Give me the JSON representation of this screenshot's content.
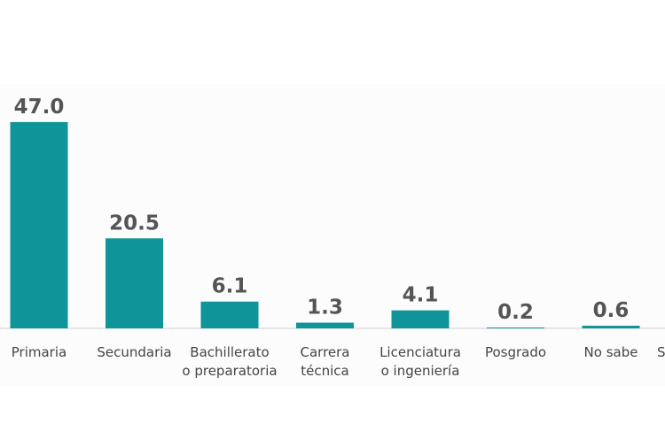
{
  "chart_data": {
    "type": "bar",
    "categories": [
      [
        "Primaria"
      ],
      [
        "Secundaria"
      ],
      [
        "Bachillerato",
        "o preparatoria"
      ],
      [
        "Carrera",
        "técnica"
      ],
      [
        "Licenciatura",
        "o ingeniería"
      ],
      [
        "Posgrado"
      ],
      [
        "No sabe"
      ],
      [
        "S"
      ]
    ],
    "values": [
      47.0,
      20.5,
      6.1,
      1.3,
      4.1,
      0.2,
      0.6,
      null
    ],
    "value_labels": [
      "47.0",
      "20.5",
      "6.1",
      "1.3",
      "4.1",
      "0.2",
      "0.6",
      null
    ],
    "color": "#0f9599"
  }
}
